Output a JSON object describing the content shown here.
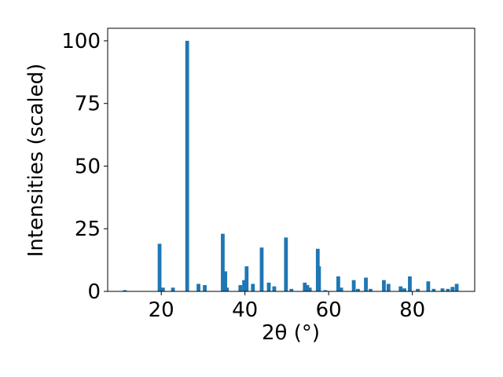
{
  "chart_data": {
    "type": "bar",
    "xlabel": "2θ (°)",
    "ylabel": "Intensities (scaled)",
    "color": "#1f77b4",
    "x": [
      11.3,
      19.6,
      20.4,
      22.8,
      26.2,
      28.9,
      30.4,
      34.7,
      35.3,
      35.7,
      38.9,
      39.8,
      40.4,
      41.9,
      44.0,
      45.7,
      47.0,
      49.8,
      51.1,
      54.3,
      54.9,
      55.5,
      57.4,
      57.7,
      59.2,
      62.3,
      63.0,
      66.0,
      67.0,
      68.9,
      70.0,
      73.2,
      74.3,
      77.2,
      78.1,
      79.4,
      81.3,
      83.8,
      85.1,
      87.2,
      88.5,
      89.6,
      90.6
    ],
    "values": [
      0.5,
      19,
      1.5,
      1.5,
      100,
      3,
      2.5,
      23,
      8,
      1.5,
      2.5,
      4.5,
      10,
      3,
      17.5,
      3.5,
      2,
      21.5,
      1,
      3.5,
      2.5,
      1.5,
      17,
      10,
      0.5,
      6,
      1.5,
      4.5,
      1,
      5.5,
      1,
      4.5,
      3,
      2,
      1.2,
      6,
      1,
      4,
      1,
      1.2,
      1,
      1.8,
      3
    ],
    "xlim": [
      7.2,
      94.9
    ],
    "ylim": [
      0,
      105
    ],
    "xticks": [
      20,
      40,
      60,
      80
    ],
    "yticks": [
      0,
      25,
      50,
      75,
      100
    ]
  }
}
